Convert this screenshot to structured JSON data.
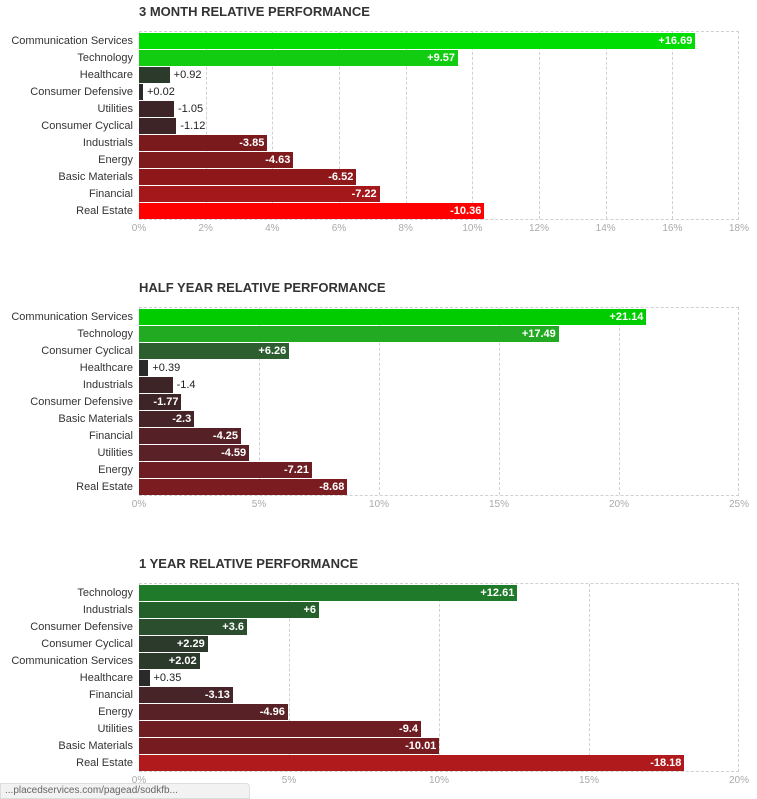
{
  "chart_data": [
    {
      "type": "bar",
      "orientation": "horizontal",
      "title": "3 MONTH RELATIVE PERFORMANCE",
      "categories": [
        "Communication Services",
        "Technology",
        "Healthcare",
        "Consumer Defensive",
        "Utilities",
        "Consumer Cyclical",
        "Industrials",
        "Energy",
        "Basic Materials",
        "Financial",
        "Real Estate"
      ],
      "values": [
        16.69,
        9.57,
        0.92,
        0.02,
        -1.05,
        -1.12,
        -3.85,
        -4.63,
        -6.52,
        -7.22,
        -10.36
      ],
      "value_labels": [
        "+16.69",
        "+9.57",
        "+0.92",
        "+0.02",
        "-1.05",
        "-1.12",
        "-3.85",
        "-4.63",
        "-6.52",
        "-7.22",
        "-10.36"
      ],
      "colors": [
        "#00dd00",
        "#11cc11",
        "#2b3a2b",
        "#2a2a2a",
        "#3d2426",
        "#3d2426",
        "#7a1a1c",
        "#801b1d",
        "#8e1719",
        "#a4171a",
        "#ff0000"
      ],
      "xlim": [
        0,
        18
      ],
      "ticks": [
        "0%",
        "2%",
        "4%",
        "6%",
        "8%",
        "10%",
        "12%",
        "14%",
        "16%",
        "18%"
      ],
      "grid": true
    },
    {
      "type": "bar",
      "orientation": "horizontal",
      "title": "HALF YEAR RELATIVE PERFORMANCE",
      "categories": [
        "Communication Services",
        "Technology",
        "Consumer Cyclical",
        "Healthcare",
        "Industrials",
        "Consumer Defensive",
        "Basic Materials",
        "Financial",
        "Utilities",
        "Energy",
        "Real Estate"
      ],
      "values": [
        21.14,
        17.49,
        6.26,
        0.39,
        -1.4,
        -1.77,
        -2.3,
        -4.25,
        -4.59,
        -7.21,
        -8.68
      ],
      "value_labels": [
        "+21.14",
        "+17.49",
        "+6.26",
        "+0.39",
        "-1.4",
        "-1.77",
        "-2.3",
        "-4.25",
        "-4.59",
        "-7.21",
        "-8.68"
      ],
      "colors": [
        "#00cc00",
        "#22aa22",
        "#2d5e30",
        "#2a2a2a",
        "#3d2426",
        "#3d2426",
        "#452326",
        "#562126",
        "#5a2126",
        "#6e1e22",
        "#7a1c20"
      ],
      "xlim": [
        0,
        25
      ],
      "ticks": [
        "0%",
        "5%",
        "10%",
        "15%",
        "20%",
        "25%"
      ],
      "grid": true
    },
    {
      "type": "bar",
      "orientation": "horizontal",
      "title": "1 YEAR RELATIVE PERFORMANCE",
      "categories": [
        "Technology",
        "Industrials",
        "Consumer Defensive",
        "Consumer Cyclical",
        "Communication Services",
        "Healthcare",
        "Financial",
        "Energy",
        "Utilities",
        "Basic Materials",
        "Real Estate"
      ],
      "values": [
        12.61,
        6,
        3.6,
        2.29,
        2.02,
        0.35,
        -3.13,
        -4.96,
        -9.4,
        -10.01,
        -18.18
      ],
      "value_labels": [
        "+12.61",
        "+6",
        "+3.6",
        "+2.29",
        "+2.02",
        "+0.35",
        "-3.13",
        "-4.96",
        "-9.4",
        "-10.01",
        "-18.18"
      ],
      "colors": [
        "#1f7a2a",
        "#24602a",
        "#2b4f2e",
        "#2b3a2b",
        "#2b3a2b",
        "#2a2a2a",
        "#472428",
        "#572126",
        "#6e1e22",
        "#761c20",
        "#b01a1d"
      ],
      "xlim": [
        0,
        20
      ],
      "ticks": [
        "0%",
        "5%",
        "10%",
        "15%",
        "20%"
      ],
      "grid": true
    }
  ],
  "status_bar": {
    "text": "...placedservices.com/pagead/sodkfb..."
  }
}
